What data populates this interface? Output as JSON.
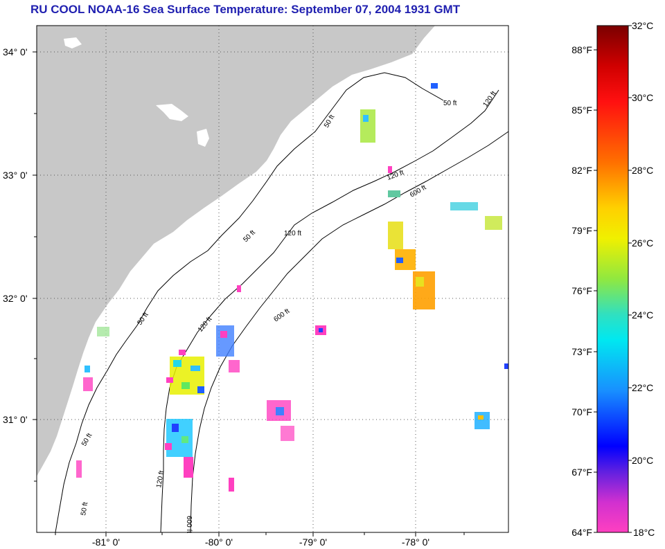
{
  "title": "RU COOL  NOAA-16  Sea Surface Temperature:  September 07, 2004 1931 GMT",
  "colors": {
    "land": "#c8c8c8",
    "ocean": "#ffffff",
    "title": "#1f1fb0"
  },
  "map": {
    "lon_ticks": [
      "-81° 0'",
      "-80° 0'",
      "-79° 0'",
      "-78° 0'"
    ],
    "lat_ticks": [
      "34° 0'",
      "33° 0'",
      "32° 0'",
      "31° 0'"
    ],
    "isobath_labels": [
      "50 ft",
      "50 ft",
      "50 ft",
      "50 ft",
      "50 ft",
      "50 ft",
      "120 ft",
      "120 ft",
      "120 ft",
      "120 ft",
      "120 ft",
      "600 ft",
      "600 ft",
      "600 ft"
    ]
  },
  "colorbar": {
    "fahrenheit_labels": [
      "88°F",
      "85°F",
      "82°F",
      "79°F",
      "76°F",
      "73°F",
      "70°F",
      "67°F",
      "64°F"
    ],
    "celsius_labels": [
      "32°C",
      "30°C",
      "28°C",
      "26°C",
      "24°C",
      "22°C",
      "20°C",
      "18°C"
    ]
  }
}
